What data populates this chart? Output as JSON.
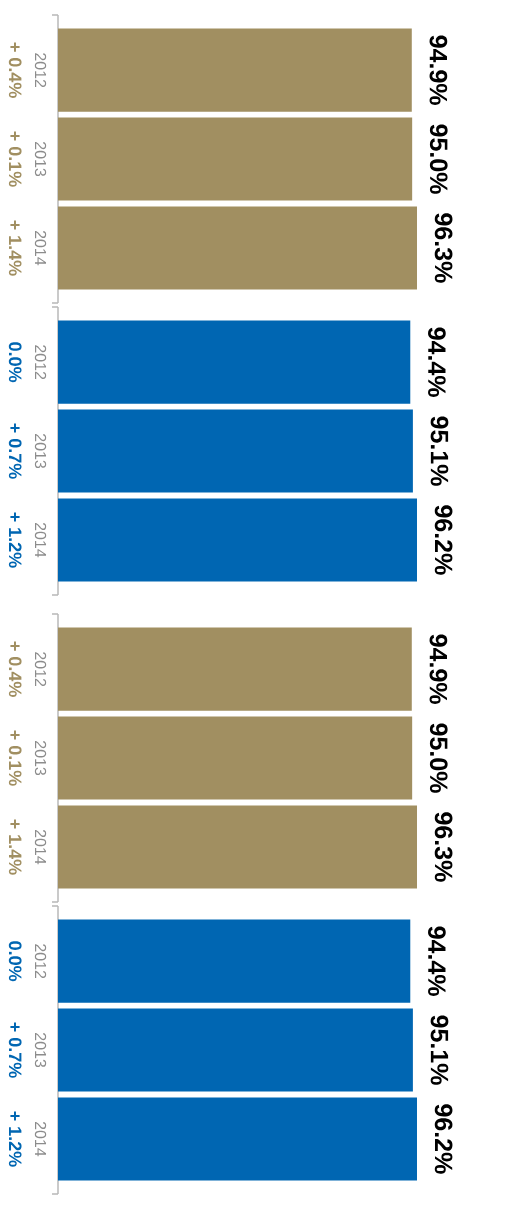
{
  "chart_data": [
    {
      "type": "bar",
      "orientation": "horizontal",
      "categories": [
        "2012",
        "2013",
        "2014"
      ],
      "values": [
        94.9,
        95.0,
        96.3
      ],
      "color": "#a18f61",
      "value_labels": [
        "94.9%",
        "95.0%",
        "96.3%"
      ],
      "annotations": [
        "+ 0.4%",
        "+ 0.1%",
        "+ 1.4%"
      ],
      "tick_labels": "y"
    },
    {
      "type": "bar",
      "orientation": "horizontal",
      "categories": [
        "2012",
        "2013",
        "2014"
      ],
      "values": [
        94.4,
        95.1,
        96.2
      ],
      "color": "#0066b2",
      "value_labels": [
        "94.4%",
        "95.1%",
        "96.2%"
      ],
      "annotations": [
        "0.0%",
        "+ 0.7%",
        "+ 1.2%"
      ],
      "tick_labels": "y"
    },
    {
      "type": "bar",
      "orientation": "horizontal",
      "categories": [
        "2012",
        "2013",
        "2014"
      ],
      "values": [
        94.9,
        95.0,
        96.3
      ],
      "color": "#a18f61",
      "value_labels": [
        "94.9%",
        "95.0%",
        "96.3%"
      ],
      "annotations": [
        "+ 0.4%",
        "+ 0.1%",
        "+ 1.4%"
      ],
      "tick_labels": "y"
    },
    {
      "type": "bar",
      "orientation": "horizontal",
      "categories": [
        "2012",
        "2013",
        "2014"
      ],
      "values": [
        94.4,
        95.1,
        96.2
      ],
      "color": "#0066b2",
      "value_labels": [
        "94.4%",
        "95.1%",
        "96.2%"
      ],
      "annotations": [
        "0.0%",
        "+ 0.7%",
        "+ 1.2%"
      ],
      "tick_labels": "y"
    }
  ]
}
